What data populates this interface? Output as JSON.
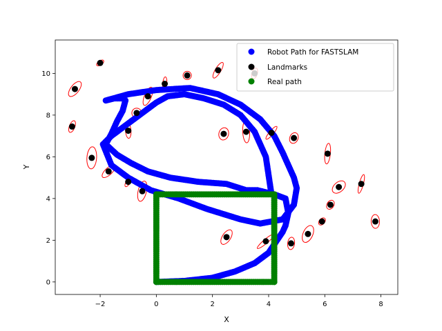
{
  "chart_data": {
    "type": "scatter",
    "xlabel": "X",
    "ylabel": "Y",
    "xlim": [
      -3.6,
      8.6
    ],
    "ylim": [
      -0.6,
      11.6
    ],
    "xticks": [
      -2,
      0,
      2,
      4,
      6,
      8
    ],
    "yticks": [
      0,
      2,
      4,
      6,
      8,
      10
    ],
    "grid": false,
    "legend_position": "top-right",
    "legend": [
      {
        "label": "Robot Path for FASTSLAM",
        "color": "#0000ff"
      },
      {
        "label": "Landmarks",
        "color": "#000000"
      },
      {
        "label": "Real path",
        "color": "#008000"
      }
    ],
    "colors": {
      "robot_path": "#0000ff",
      "landmarks": "#000000",
      "real_path": "#008000",
      "uncertainty_ellipse": "#ff0000"
    },
    "real_path": {
      "x": [
        0,
        4.2,
        4.2,
        0,
        0
      ],
      "y": [
        0,
        0,
        4.2,
        4.2,
        0
      ]
    },
    "robot_path": {
      "x": [
        0,
        1.0,
        2.0,
        2.8,
        3.5,
        4.0,
        4.3,
        4.5,
        4.6,
        4.7,
        4.6,
        4.2,
        3.6,
        3.2,
        2.5,
        1.5,
        0.5,
        -0.3,
        -0.9,
        -1.4,
        -1.8,
        -1.6,
        -1.4,
        -1.2,
        -1.1,
        -1.2,
        -1.5,
        -1.8,
        -1.0,
        0,
        1.2,
        2.2,
        3.0,
        3.7,
        4.2,
        4.5,
        4.7,
        4.9,
        5.0,
        4.9,
        4.5,
        3.7,
        3.0,
        1.8,
        0.8,
        -0.2,
        -1.0,
        -1.6,
        -1.9,
        -1.6,
        -1.0,
        -0.5,
        0,
        0.4,
        1.0,
        1.7,
        2.4,
        3.0,
        3.5,
        3.9,
        4.1
      ],
      "y": [
        0,
        0.05,
        0.2,
        0.5,
        0.9,
        1.4,
        2.0,
        2.4,
        2.7,
        3.3,
        4.0,
        4.2,
        4.4,
        4.4,
        4.7,
        4.8,
        5.0,
        5.3,
        5.7,
        6.1,
        6.6,
        7.1,
        7.7,
        8.2,
        8.7,
        8.8,
        8.8,
        8.7,
        9.0,
        9.2,
        9.3,
        9.0,
        8.5,
        7.8,
        7.0,
        6.2,
        5.6,
        5.0,
        4.5,
        3.7,
        3.0,
        2.8,
        3.0,
        3.5,
        4.0,
        4.4,
        5.0,
        5.6,
        6.6,
        7.0,
        7.6,
        8.1,
        8.6,
        8.9,
        9.0,
        8.8,
        8.5,
        8.0,
        7.2,
        6.0,
        4.2
      ]
    },
    "landmarks": {
      "x": [
        -2.0,
        -2.9,
        -3.0,
        -2.3,
        -1.7,
        -1.0,
        -0.5,
        -1.0,
        -0.7,
        -0.3,
        0.3,
        1.1,
        2.2,
        2.4,
        3.2,
        4.1,
        4.9,
        6.1,
        6.5,
        6.2,
        7.3,
        7.8,
        5.9,
        5.4,
        4.8,
        3.9,
        2.5,
        3.5
      ],
      "y": [
        10.5,
        9.25,
        7.45,
        5.95,
        5.3,
        4.8,
        4.35,
        7.25,
        8.1,
        8.9,
        9.5,
        9.9,
        10.15,
        7.1,
        7.2,
        7.15,
        6.9,
        6.15,
        4.55,
        3.7,
        4.7,
        2.9,
        2.9,
        2.3,
        1.85,
        1.95,
        2.15,
        10.0
      ]
    }
  }
}
